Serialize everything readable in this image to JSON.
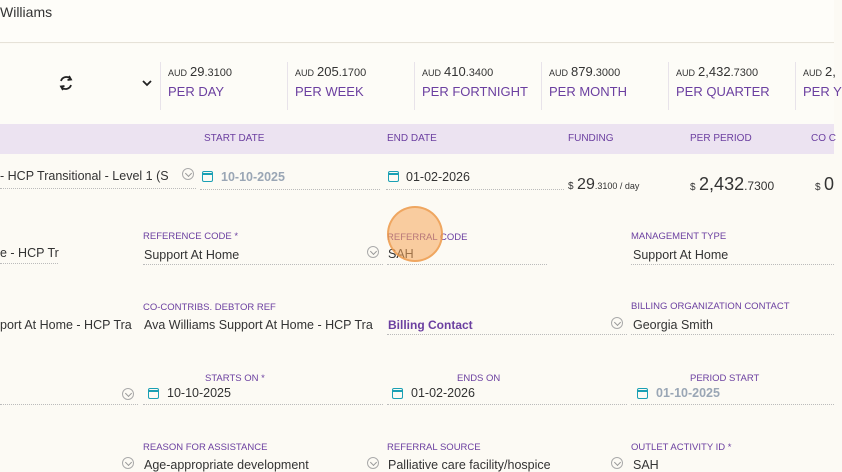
{
  "header": {
    "client_name": "Williams"
  },
  "rates": [
    {
      "currency": "AUD",
      "whole": "29",
      "decimal": ".3100",
      "label": "PER DAY"
    },
    {
      "currency": "AUD",
      "whole": "205",
      "decimal": ".1700",
      "label": "PER WEEK"
    },
    {
      "currency": "AUD",
      "whole": "410",
      "decimal": ".3400",
      "label": "PER FORTNIGHT"
    },
    {
      "currency": "AUD",
      "whole": "879",
      "decimal": ".3000",
      "label": "PER MONTH"
    },
    {
      "currency": "AUD",
      "whole": "2,432",
      "decimal": ".7300",
      "label": "PER QUARTER"
    },
    {
      "currency": "AUD",
      "whole": "2,",
      "decimal": "",
      "label": "PER Y"
    }
  ],
  "columns": {
    "start_date": "START DATE",
    "end_date": "END DATE",
    "funding": "FUNDING",
    "per_period": "PER PERIOD",
    "co_contrib": "CO C"
  },
  "row": {
    "program": "- HCP Transitional - Level 1 (S",
    "start_date": "10-10-2025",
    "end_date": "01-02-2026",
    "funding_cur": "$",
    "funding_whole": "29",
    "funding_dec": ".3100 / day",
    "period_cur": "$",
    "period_whole": "2,432",
    "period_dec": ".7300",
    "co_cur": "$",
    "co_whole": "0"
  },
  "form": {
    "col0_r1": "e - HCP Tr",
    "reference_code_label": "REFERENCE CODE *",
    "reference_code": "Support At Home",
    "referral_code_label": "REFERRAL CODE",
    "referral_code": "SAH",
    "management_type_label": "MANAGEMENT TYPE",
    "management_type": "Support At Home",
    "col0_r2": "port At Home - HCP Tra",
    "debtor_ref_label": "CO-CONTRIBS. DEBTOR REF",
    "debtor_ref": "Ava Williams Support At Home - HCP Tra",
    "billing_contact": "Billing Contact",
    "billing_org_contact_label": "BILLING ORGANIZATION CONTACT",
    "billing_org_contact": "Georgia Smith",
    "starts_on_label": "STARTS ON *",
    "starts_on": "10-10-2025",
    "ends_on_label": "ENDS ON",
    "ends_on": "01-02-2026",
    "period_start_label": "PERIOD START",
    "period_start": "01-10-2025",
    "reason_label": "REASON FOR ASSISTANCE",
    "reason": "Age-appropriate development",
    "referral_source_label": "REFERRAL SOURCE",
    "referral_source": "Palliative care facility/hospice",
    "outlet_activity_label": "OUTLET ACTIVITY ID *",
    "outlet_activity": "SAH"
  }
}
